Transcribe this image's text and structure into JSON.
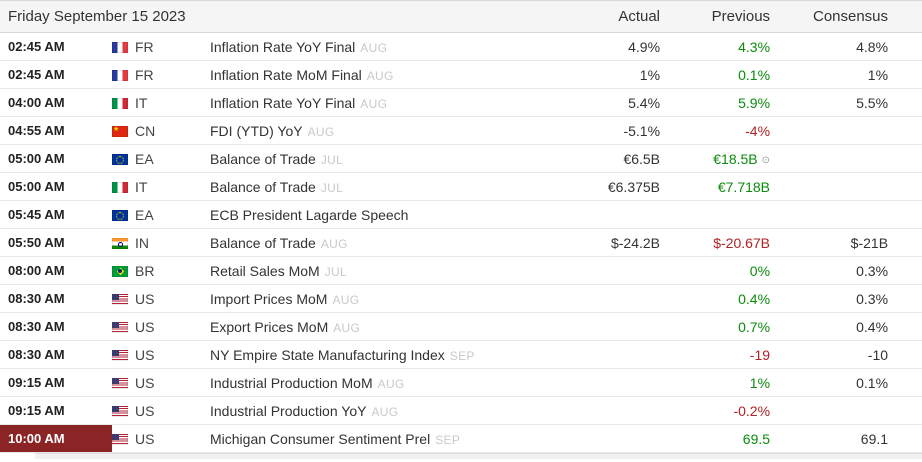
{
  "header": {
    "date": "Friday September 15 2023",
    "columns": [
      "Actual",
      "Previous",
      "Consensus"
    ]
  },
  "icons": {
    "revised": "⊙"
  },
  "colors": {
    "positive": "#0b8b0b",
    "negative": "#b22222",
    "highlight_time_background": "#8b2424"
  },
  "rows": [
    {
      "time": "02:45 AM",
      "flag": "fr",
      "country": "FR",
      "event": "Inflation Rate YoY Final",
      "period": "AUG",
      "actual": "4.9%",
      "previous": "4.3%",
      "previous_color": "green",
      "consensus": "4.8%"
    },
    {
      "time": "02:45 AM",
      "flag": "fr",
      "country": "FR",
      "event": "Inflation Rate MoM Final",
      "period": "AUG",
      "actual": "1%",
      "previous": "0.1%",
      "previous_color": "green",
      "consensus": "1%"
    },
    {
      "time": "04:00 AM",
      "flag": "it",
      "country": "IT",
      "event": "Inflation Rate YoY Final",
      "period": "AUG",
      "actual": "5.4%",
      "previous": "5.9%",
      "previous_color": "green",
      "consensus": "5.5%"
    },
    {
      "time": "04:55 AM",
      "flag": "cn",
      "country": "CN",
      "event": "FDI (YTD) YoY",
      "period": "AUG",
      "actual": "-5.1%",
      "previous": "-4%",
      "previous_color": "red",
      "consensus": ""
    },
    {
      "time": "05:00 AM",
      "flag": "ea",
      "country": "EA",
      "event": "Balance of Trade",
      "period": "JUL",
      "actual": "€6.5B",
      "previous": "€18.5B",
      "previous_color": "green",
      "revised": true,
      "consensus": ""
    },
    {
      "time": "05:00 AM",
      "flag": "it",
      "country": "IT",
      "event": "Balance of Trade",
      "period": "JUL",
      "actual": "€6.375B",
      "previous": "€7.718B",
      "previous_color": "green",
      "consensus": ""
    },
    {
      "time": "05:45 AM",
      "flag": "ea",
      "country": "EA",
      "event": "ECB President Lagarde Speech",
      "period": "",
      "actual": "",
      "previous": "",
      "consensus": ""
    },
    {
      "time": "05:50 AM",
      "flag": "in",
      "country": "IN",
      "event": "Balance of Trade",
      "period": "AUG",
      "actual": "$-24.2B",
      "previous": "$-20.67B",
      "previous_color": "red",
      "consensus": "$-21B"
    },
    {
      "time": "08:00 AM",
      "flag": "br",
      "country": "BR",
      "event": "Retail Sales MoM",
      "period": "JUL",
      "actual": "",
      "previous": "0%",
      "previous_color": "green",
      "consensus": "0.3%"
    },
    {
      "time": "08:30 AM",
      "flag": "us",
      "country": "US",
      "event": "Import Prices MoM",
      "period": "AUG",
      "actual": "",
      "previous": "0.4%",
      "previous_color": "green",
      "consensus": "0.3%"
    },
    {
      "time": "08:30 AM",
      "flag": "us",
      "country": "US",
      "event": "Export Prices MoM",
      "period": "AUG",
      "actual": "",
      "previous": "0.7%",
      "previous_color": "green",
      "consensus": "0.4%"
    },
    {
      "time": "08:30 AM",
      "flag": "us",
      "country": "US",
      "event": "NY Empire State Manufacturing Index",
      "period": "SEP",
      "actual": "",
      "previous": "-19",
      "previous_color": "red",
      "consensus": "-10"
    },
    {
      "time": "09:15 AM",
      "flag": "us",
      "country": "US",
      "event": "Industrial Production MoM",
      "period": "AUG",
      "actual": "",
      "previous": "1%",
      "previous_color": "green",
      "consensus": "0.1%"
    },
    {
      "time": "09:15 AM",
      "flag": "us",
      "country": "US",
      "event": "Industrial Production YoY",
      "period": "AUG",
      "actual": "",
      "previous": "-0.2%",
      "previous_color": "red",
      "consensus": ""
    },
    {
      "time": "10:00 AM",
      "time_highlight": true,
      "flag": "us",
      "country": "US",
      "event": "Michigan Consumer Sentiment Prel",
      "period": "SEP",
      "actual": "",
      "previous": "69.5",
      "previous_color": "green",
      "consensus": "69.1"
    }
  ]
}
